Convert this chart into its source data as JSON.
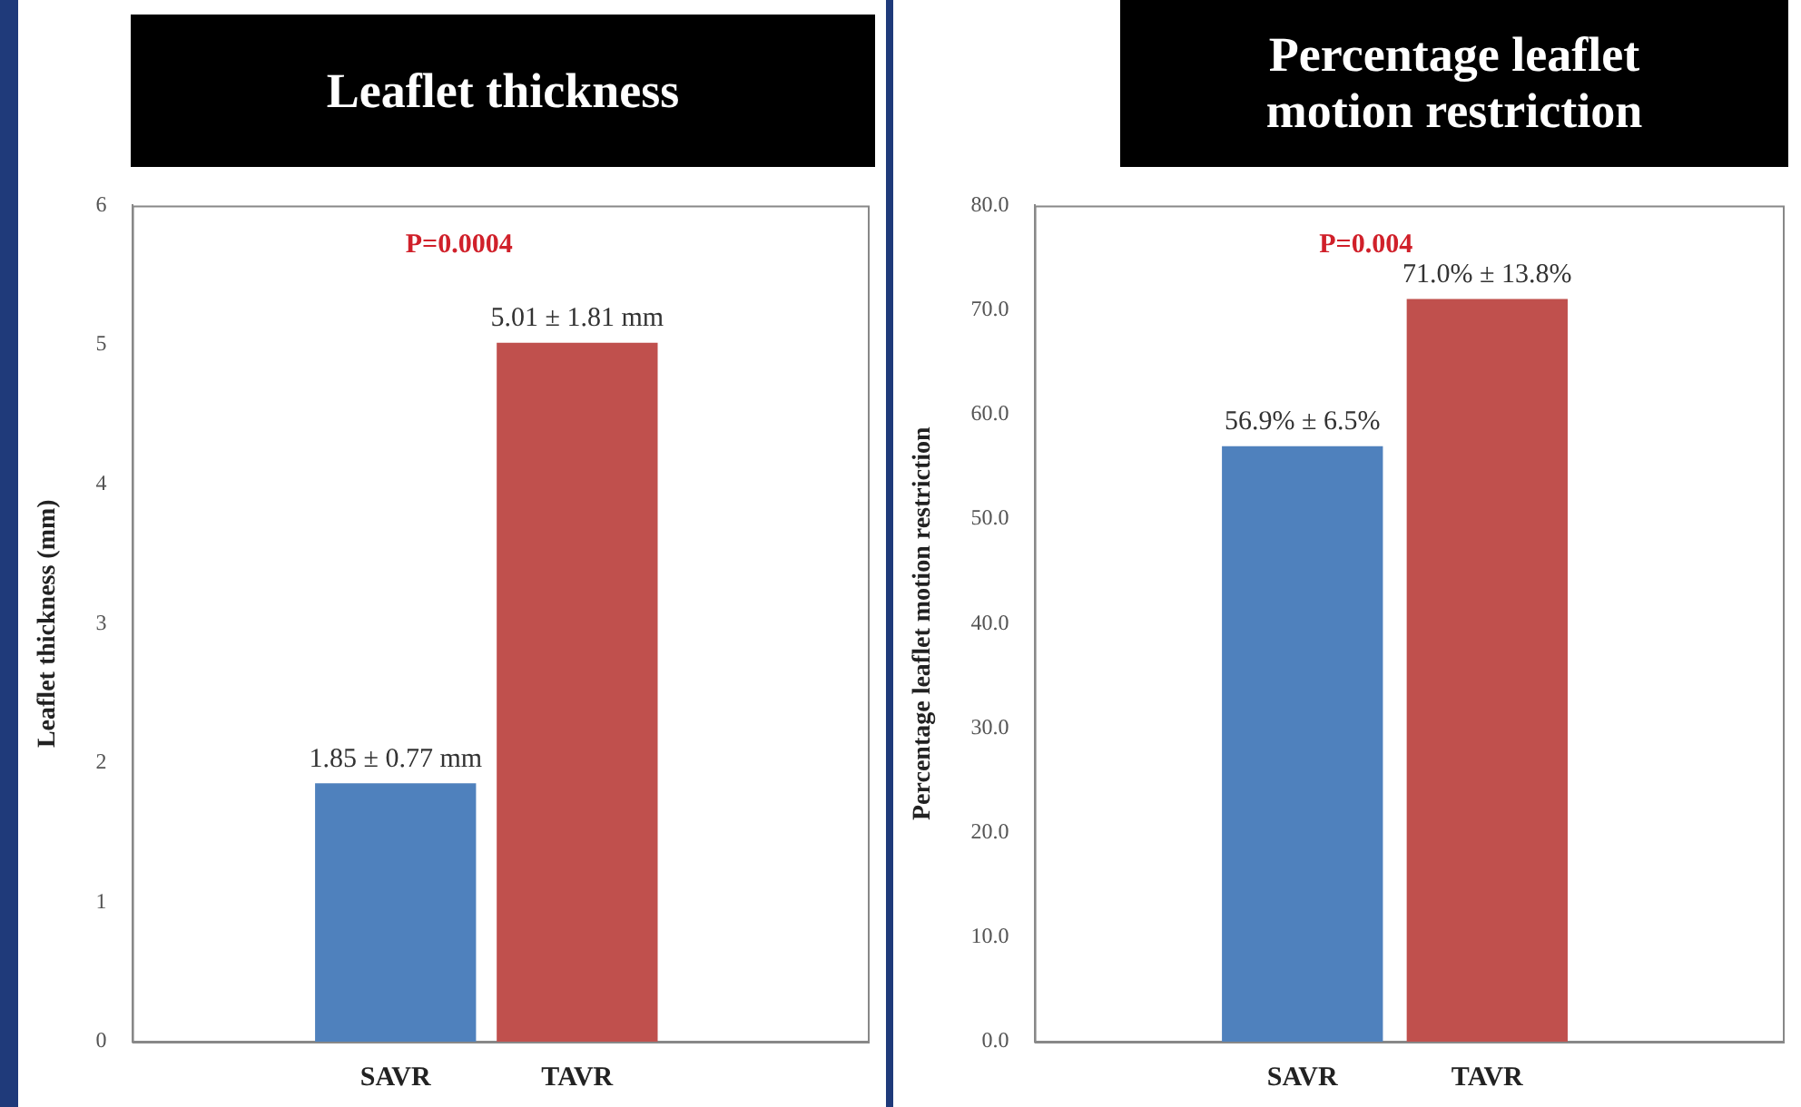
{
  "chart_data": [
    {
      "type": "bar",
      "title": "Leaflet thickness",
      "ylabel": "Leaflet thickness (mm)",
      "categories": [
        "SAVR",
        "TAVR"
      ],
      "values": [
        1.85,
        5.01
      ],
      "colors": [
        "#4f81bd",
        "#c0504d"
      ],
      "value_labels": [
        "1.85 ± 0.77 mm",
        "5.01 ± 1.81 mm"
      ],
      "ylim": [
        0,
        6
      ],
      "yticks": [
        0,
        1,
        2,
        3,
        4,
        5,
        6
      ],
      "grid": false,
      "annotations": [
        "P=0.0004"
      ]
    },
    {
      "type": "bar",
      "title": "Percentage leaflet motion restriction",
      "ylabel": "Percentage leaflet motion restriction",
      "categories": [
        "SAVR",
        "TAVR"
      ],
      "values": [
        56.9,
        71.0
      ],
      "colors": [
        "#4f81bd",
        "#c0504d"
      ],
      "value_labels": [
        "56.9% ± 6.5%",
        "71.0% ± 13.8%"
      ],
      "ylim": [
        0,
        80
      ],
      "yticks": [
        {
          "value": 0,
          "label": "0.0"
        },
        {
          "value": 10,
          "label": "10.0"
        },
        {
          "value": 20,
          "label": "20.0"
        },
        {
          "value": 30,
          "label": "30.0"
        },
        {
          "value": 40,
          "label": "40.0"
        },
        {
          "value": 50,
          "label": "50.0"
        },
        {
          "value": 60,
          "label": "60.0"
        },
        {
          "value": 70,
          "label": "70.0"
        },
        {
          "value": 80,
          "label": "80.0"
        }
      ],
      "grid": false,
      "annotations": [
        "P=0.004"
      ]
    }
  ]
}
